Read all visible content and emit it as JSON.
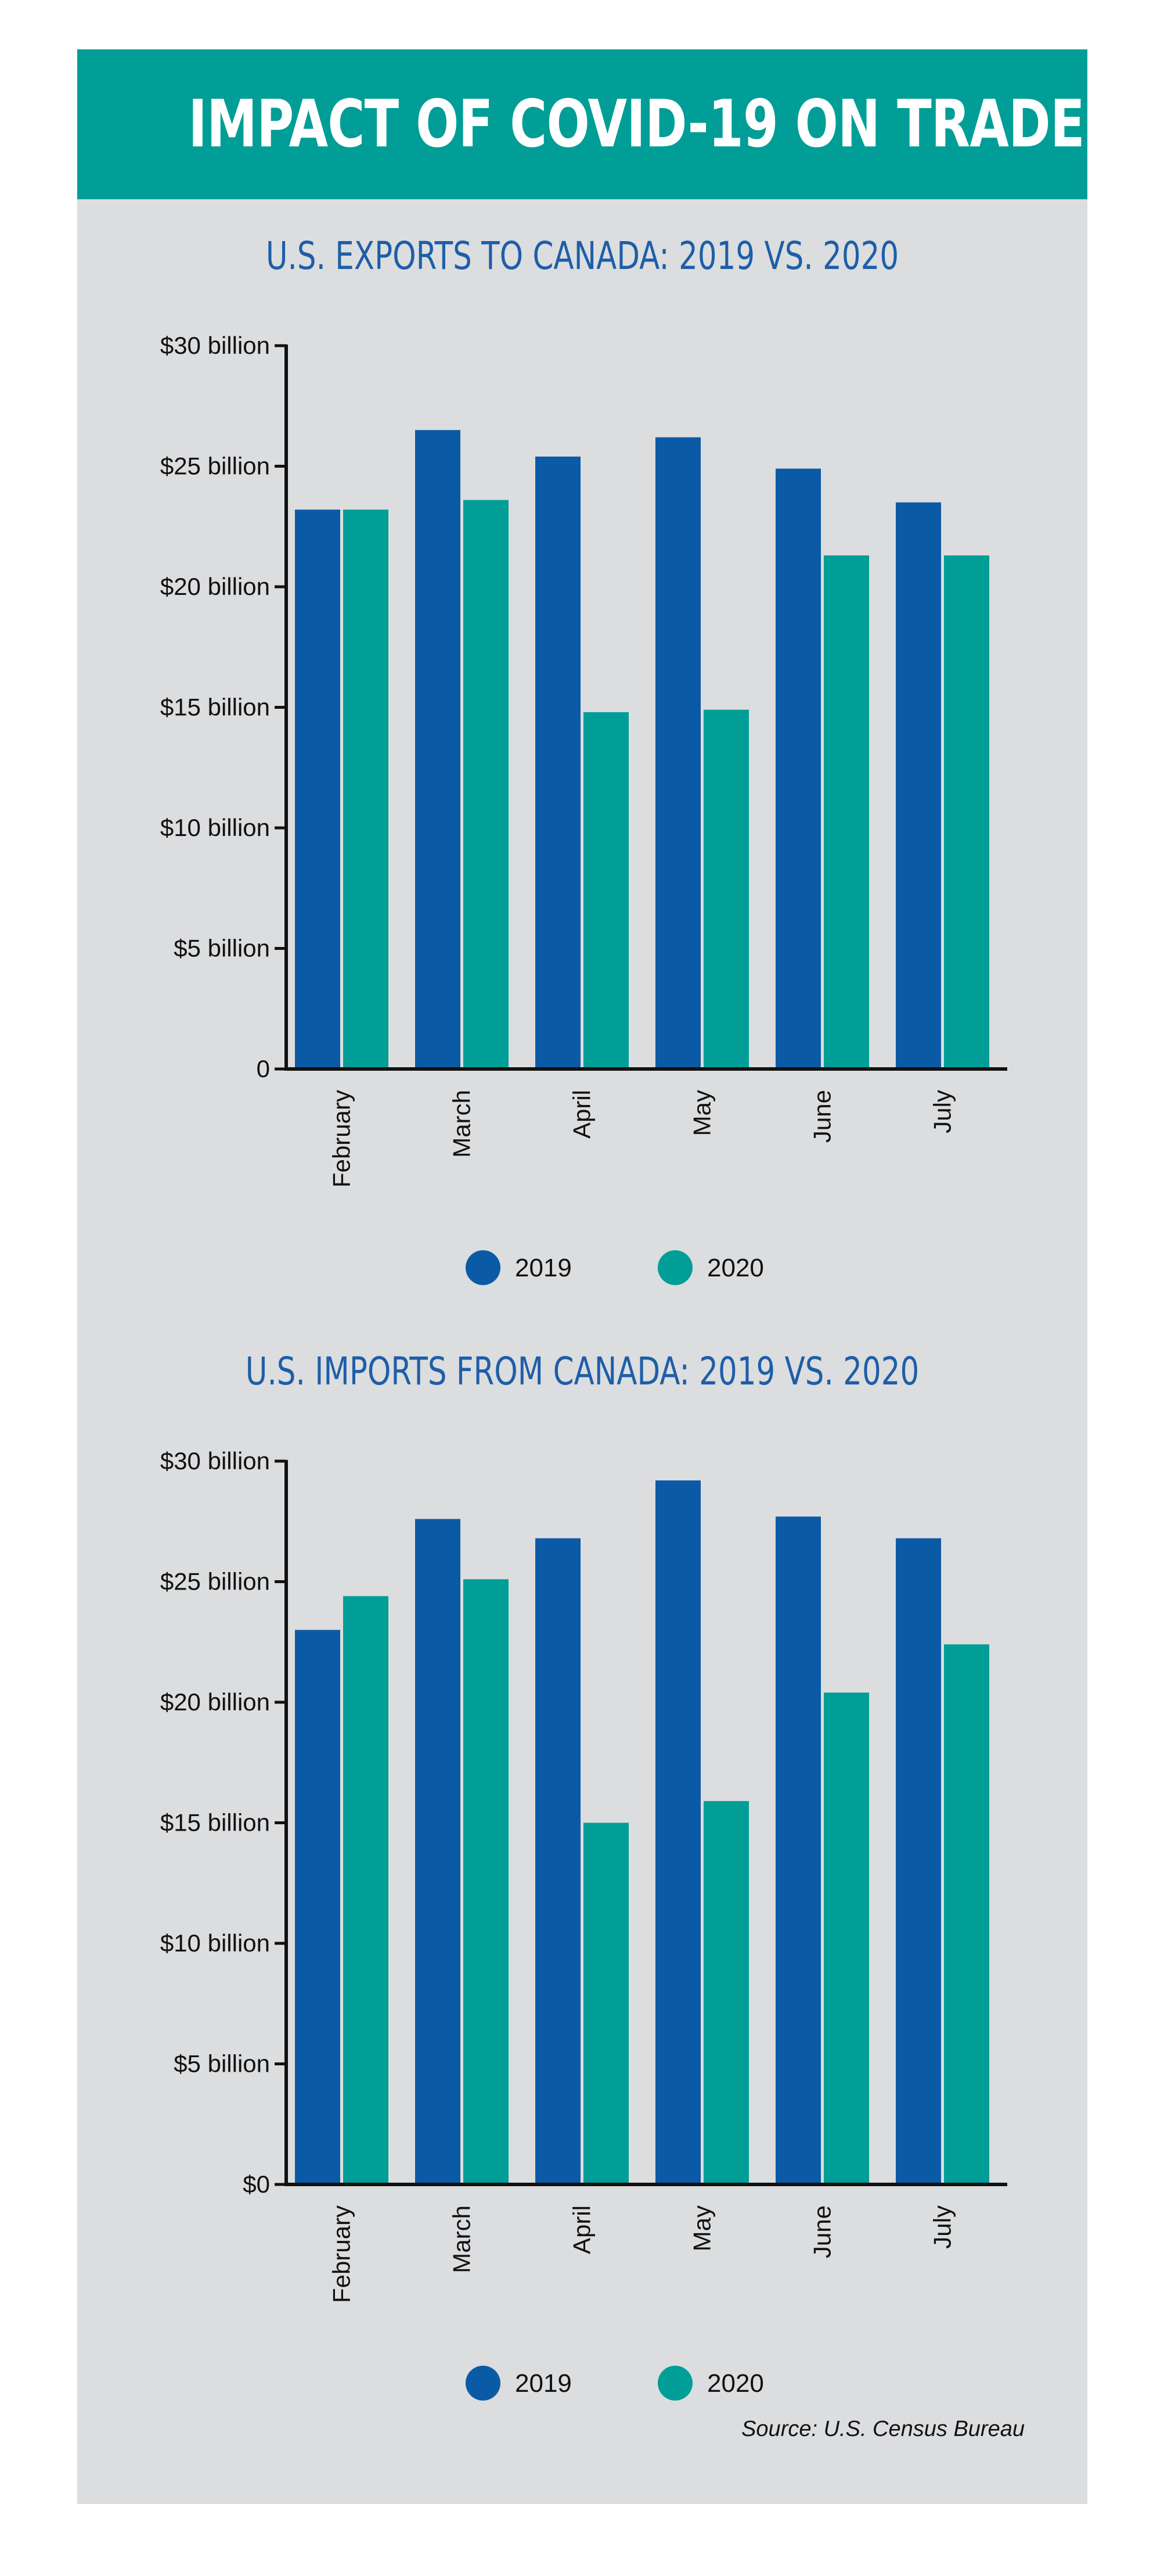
{
  "header": {
    "title": "IMPACT OF COVID-19 ON TRADE"
  },
  "colors": {
    "header_bg": "#009e96",
    "panel_bg": "#dcdddf",
    "title_blue": "#1d5ea8"
  },
  "chart_data": [
    {
      "type": "bar",
      "title": "U.S. EXPORTS TO CANADA: 2019 VS. 2020",
      "categories": [
        "February",
        "March",
        "April",
        "May",
        "June",
        "July"
      ],
      "series": [
        {
          "name": "2019",
          "color": "#0b5aa6",
          "values": [
            23.2,
            26.5,
            25.4,
            26.2,
            24.9,
            23.5
          ]
        },
        {
          "name": "2020",
          "color": "#009e96",
          "values": [
            23.2,
            23.6,
            14.8,
            14.9,
            21.3,
            21.3
          ]
        }
      ],
      "ylim": [
        0,
        30
      ],
      "yticks": [
        0,
        5,
        10,
        15,
        20,
        25,
        30
      ],
      "ytick_labels": [
        "0",
        "$5 billion",
        "$10 billion",
        "$15 billion",
        "$20 billion",
        "$25 billion",
        "$30 billion"
      ],
      "legend_position": "bottom",
      "grid": false
    },
    {
      "type": "bar",
      "title": "U.S. IMPORTS FROM CANADA: 2019 VS. 2020",
      "categories": [
        "February",
        "March",
        "April",
        "May",
        "June",
        "July"
      ],
      "series": [
        {
          "name": "2019",
          "color": "#0b5aa6",
          "values": [
            23.0,
            27.6,
            26.8,
            29.2,
            27.7,
            26.8
          ]
        },
        {
          "name": "2020",
          "color": "#009e96",
          "values": [
            24.4,
            25.1,
            15.0,
            15.9,
            20.4,
            22.4
          ]
        }
      ],
      "ylim": [
        0,
        30
      ],
      "yticks": [
        0,
        5,
        10,
        15,
        20,
        25,
        30
      ],
      "ytick_labels": [
        "$0",
        "$5 billion",
        "$10 billion",
        "$15 billion",
        "$20 billion",
        "$25 billion",
        "$30 billion"
      ],
      "legend_position": "bottom",
      "grid": false
    }
  ],
  "source": "Source: U.S. Census Bureau"
}
